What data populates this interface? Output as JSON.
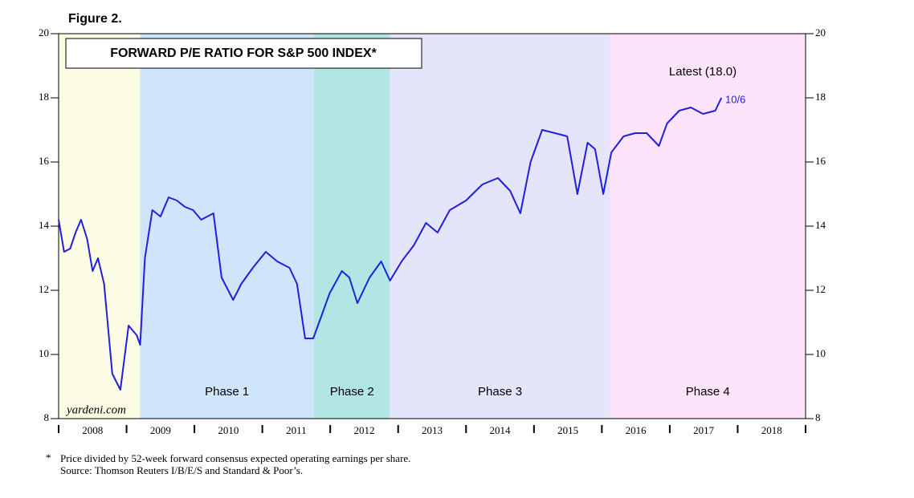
{
  "chart_data": {
    "type": "line",
    "figure_label": "Figure 2.",
    "title": "FORWARD P/E RATIO FOR S&P 500 INDEX*",
    "annotation": "Latest (18.0)",
    "last_point_label": "10/6",
    "watermark": "yardeni.com",
    "footnote_marker": "*",
    "footnote": "Price divided by 52-week forward consensus expected operating earnings per share.",
    "source": "Source: Thomson Reuters I/B/E/S and Standard & Poor’s.",
    "bands": [
      {
        "start": 2008,
        "end": 2009.2,
        "color": "#fdfde6"
      },
      {
        "name": "Phase 1",
        "start": 2009.2,
        "end": 2011.76,
        "color": "#cfe5fb"
      },
      {
        "name": "Phase 2",
        "start": 2011.76,
        "end": 2012.88,
        "color": "#b2e6e4"
      },
      {
        "name": "Phase 3",
        "start": 2012.88,
        "end": 2016.12,
        "color": "#e4e4fb"
      },
      {
        "name": "Phase 4",
        "start": 2016.12,
        "end": 2019,
        "color": "#fde4fb"
      }
    ],
    "series": [
      {
        "color": "#1f1fdc",
        "x": [
          2008.0,
          2008.08,
          2008.17,
          2008.25,
          2008.33,
          2008.42,
          2008.5,
          2008.58,
          2008.67,
          2008.79,
          2008.91,
          2009.03,
          2009.15,
          2009.2,
          2009.27,
          2009.38,
          2009.5,
          2009.62,
          2009.74,
          2009.86,
          2009.98,
          2010.1,
          2010.28,
          2010.4,
          2010.57,
          2010.69,
          2010.86,
          2011.05,
          2011.22,
          2011.4,
          2011.51,
          2011.63,
          2011.75,
          2011.87,
          2011.99,
          2012.17,
          2012.28,
          2012.4,
          2012.58,
          2012.75,
          2012.88,
          2013.05,
          2013.23,
          2013.41,
          2013.58,
          2013.76,
          2014.0,
          2014.24,
          2014.47,
          2014.65,
          2014.8,
          2014.95,
          2015.12,
          2015.31,
          2015.49,
          2015.64,
          2015.79,
          2015.9,
          2016.02,
          2016.14,
          2016.32,
          2016.49,
          2016.66,
          2016.84,
          2016.96,
          2017.14,
          2017.31,
          2017.49,
          2017.67,
          2017.76
        ],
        "values": [
          14.2,
          13.2,
          13.3,
          13.8,
          14.2,
          13.6,
          12.6,
          13.0,
          12.2,
          9.4,
          8.9,
          10.9,
          10.6,
          10.3,
          13.0,
          14.5,
          14.3,
          14.9,
          14.8,
          14.6,
          14.5,
          14.2,
          14.4,
          12.4,
          11.7,
          12.2,
          12.7,
          13.2,
          12.9,
          12.7,
          12.2,
          10.5,
          10.5,
          11.2,
          11.9,
          12.6,
          12.4,
          11.6,
          12.4,
          12.9,
          12.3,
          12.9,
          13.4,
          14.1,
          13.8,
          14.5,
          14.8,
          15.3,
          15.5,
          15.1,
          14.4,
          16.0,
          17.0,
          16.9,
          16.8,
          15.0,
          16.6,
          16.4,
          15.0,
          16.3,
          16.8,
          16.9,
          16.9,
          16.5,
          17.2,
          17.6,
          17.7,
          17.5,
          17.6,
          18.0
        ]
      }
    ],
    "xlim": [
      2008,
      2019
    ],
    "xticks": [
      {
        "value": 2008.5,
        "label": "2008"
      },
      {
        "value": 2009.5,
        "label": "2009"
      },
      {
        "value": 2010.5,
        "label": "2010"
      },
      {
        "value": 2011.5,
        "label": "2011"
      },
      {
        "value": 2012.5,
        "label": "2012"
      },
      {
        "value": 2013.5,
        "label": "2013"
      },
      {
        "value": 2014.5,
        "label": "2014"
      },
      {
        "value": 2015.5,
        "label": "2015"
      },
      {
        "value": 2016.5,
        "label": "2016"
      },
      {
        "value": 2017.5,
        "label": "2017"
      },
      {
        "value": 2018.5,
        "label": "2018"
      }
    ],
    "ylim": [
      8,
      20
    ],
    "yticks": [
      8,
      10,
      12,
      14,
      16,
      18,
      20
    ]
  }
}
